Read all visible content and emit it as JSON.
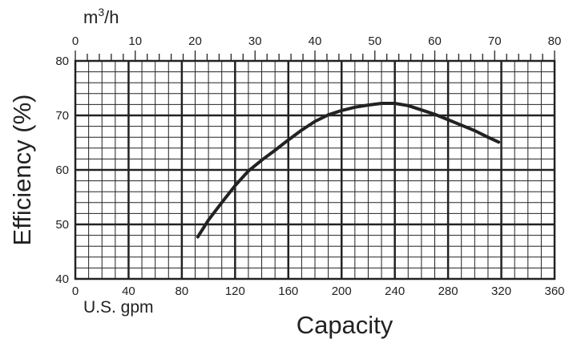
{
  "chart_data": {
    "type": "line",
    "title": "",
    "xlabel": "Capacity",
    "ylabel": "Efficiency (%)",
    "x_unit_label": "U.S. gpm",
    "top_axis_label_base": "m",
    "top_axis_label_sup": "3",
    "top_axis_label_rest": "/h",
    "xlim": [
      0,
      360
    ],
    "ylim": [
      40,
      80
    ],
    "top_xlim": [
      0,
      80
    ],
    "x_ticks": [
      "0",
      "40",
      "80",
      "120",
      "160",
      "200",
      "240",
      "280",
      "320",
      "360"
    ],
    "top_x_ticks": [
      "0",
      "10",
      "20",
      "30",
      "40",
      "50",
      "60",
      "70",
      "80"
    ],
    "y_ticks": [
      "40",
      "50",
      "60",
      "70",
      "80"
    ],
    "grid": true,
    "series": [
      {
        "color": "#222222",
        "x": [
          92,
          100,
          110,
          120,
          130,
          140,
          150,
          160,
          170,
          180,
          190,
          200,
          210,
          220,
          230,
          240,
          250,
          260,
          270,
          280,
          290,
          300,
          310,
          318
        ],
        "y": [
          47.7,
          50.8,
          54.0,
          57.1,
          59.8,
          61.8,
          63.6,
          65.5,
          67.3,
          68.9,
          70.1,
          70.9,
          71.5,
          71.9,
          72.2,
          72.2,
          71.8,
          71.0,
          70.2,
          69.2,
          68.2,
          67.2,
          66.0,
          65.1
        ]
      }
    ]
  }
}
